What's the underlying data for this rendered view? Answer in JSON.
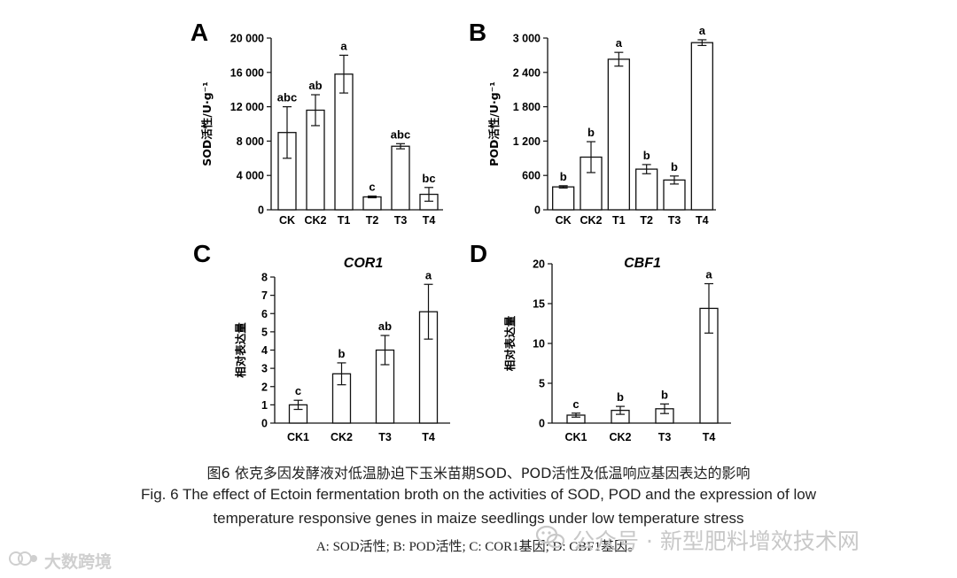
{
  "chart_data": [
    {
      "panel": "A",
      "type": "bar",
      "title": "",
      "categories": [
        "CK",
        "CK2",
        "T1",
        "T2",
        "T3",
        "T4"
      ],
      "values": [
        9000,
        11600,
        15800,
        1500,
        7400,
        1800
      ],
      "errors": [
        3000,
        1800,
        2200,
        100,
        300,
        800
      ],
      "sig_labels": [
        "abc",
        "ab",
        "a",
        "c",
        "abc",
        "bc"
      ],
      "ylabel": "SOD活性/U·g⁻¹",
      "xlabel": "",
      "ylim": [
        0,
        20000
      ],
      "yticks": [
        0,
        4000,
        8000,
        12000,
        16000,
        20000
      ],
      "ytick_labels": [
        "0",
        "4 000",
        "8 000",
        "12 000",
        "16 000",
        "20 000"
      ]
    },
    {
      "panel": "B",
      "type": "bar",
      "title": "",
      "categories": [
        "CK",
        "CK2",
        "T1",
        "T2",
        "T3",
        "T4"
      ],
      "values": [
        400,
        920,
        2630,
        710,
        520,
        2920
      ],
      "errors": [
        20,
        270,
        120,
        80,
        70,
        50
      ],
      "sig_labels": [
        "b",
        "b",
        "a",
        "b",
        "b",
        "a"
      ],
      "ylabel": "POD活性/U·g⁻¹",
      "xlabel": "",
      "ylim": [
        0,
        3000
      ],
      "yticks": [
        0,
        600,
        1200,
        1800,
        2400,
        3000
      ],
      "ytick_labels": [
        "0",
        "600",
        "1 200",
        "1 800",
        "2 400",
        "3 000"
      ]
    },
    {
      "panel": "C",
      "type": "bar",
      "title": "COR1",
      "categories": [
        "CK1",
        "CK2",
        "T3",
        "T4"
      ],
      "values": [
        1.0,
        2.7,
        4.0,
        6.1
      ],
      "errors": [
        0.25,
        0.6,
        0.8,
        1.5
      ],
      "sig_labels": [
        "c",
        "b",
        "ab",
        "a"
      ],
      "ylabel": "相对表达量",
      "xlabel": "",
      "ylim": [
        0,
        8
      ],
      "yticks": [
        0,
        1,
        2,
        3,
        4,
        5,
        6,
        7,
        8
      ],
      "ytick_labels": [
        "0",
        "1",
        "2",
        "3",
        "4",
        "5",
        "6",
        "7",
        "8"
      ]
    },
    {
      "panel": "D",
      "type": "bar",
      "title": "CBF1",
      "categories": [
        "CK1",
        "CK2",
        "T3",
        "T4"
      ],
      "values": [
        1.0,
        1.6,
        1.8,
        14.4
      ],
      "errors": [
        0.25,
        0.5,
        0.6,
        3.1
      ],
      "sig_labels": [
        "c",
        "b",
        "b",
        "a"
      ],
      "ylabel": "相对表达量",
      "xlabel": "",
      "ylim": [
        0,
        20
      ],
      "yticks": [
        0,
        5,
        10,
        15,
        20
      ],
      "ytick_labels": [
        "0",
        "5",
        "10",
        "15",
        "20"
      ]
    }
  ],
  "caption": {
    "cn": "图6 依克多因发酵液对低温胁迫下玉米苗期SOD、POD活性及低温响应基因表达的影响",
    "en_line1": "Fig. 6 The effect of Ectoin fermentation broth on the activities of SOD, POD and the expression of low",
    "en_line2": "temperature responsive genes in maize seedlings under low temperature stress",
    "sub": "A: SOD活性; B: POD活性; C: COR1基因; D: CBF1基因。"
  },
  "watermarks": {
    "left_text": "大数跨境",
    "right_text": "公众号 · 新型肥料增效技术网"
  }
}
